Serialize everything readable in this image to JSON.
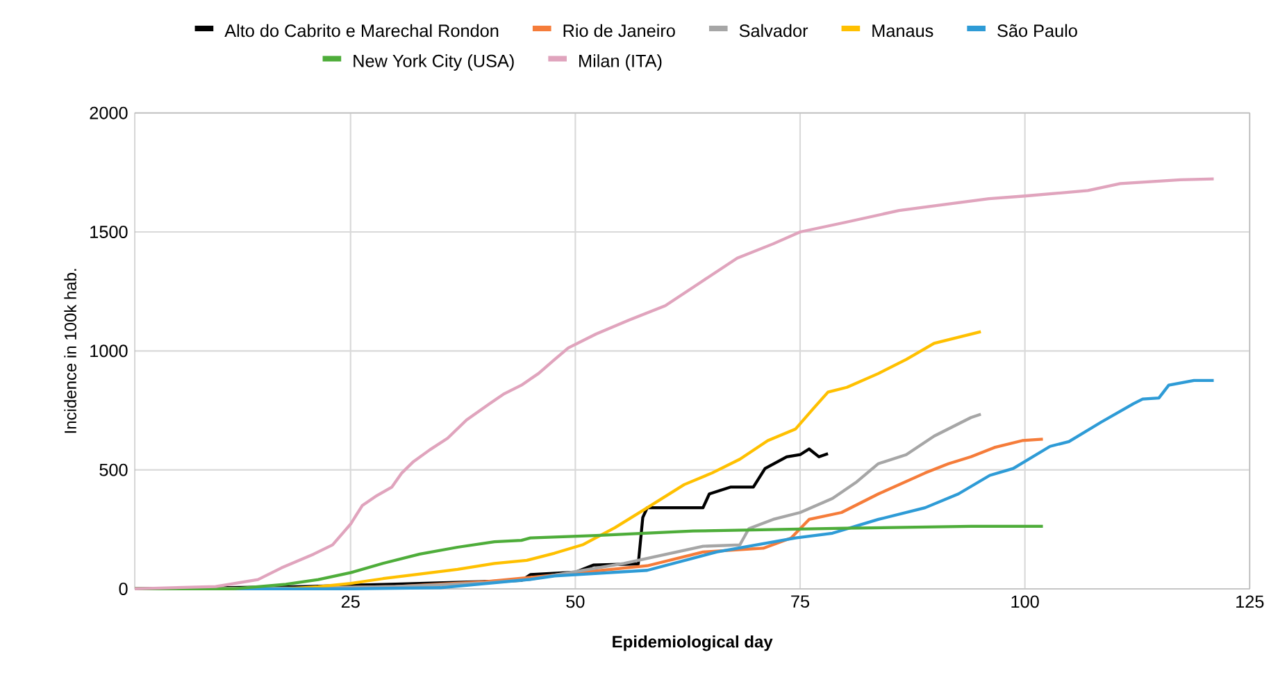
{
  "chart_data": {
    "type": "line",
    "xlabel": "Epidemiological day",
    "ylabel": "Incidence in 100k hab.",
    "xlim": [
      1,
      125
    ],
    "ylim": [
      0,
      2000
    ],
    "xticks": [
      25,
      50,
      75,
      100,
      125
    ],
    "yticks": [
      0,
      500,
      1000,
      1500,
      2000
    ],
    "grid": true,
    "legend": "top",
    "marker": "none",
    "line_style": "solid",
    "series": [
      {
        "name": "Alto do Cabrito e Marechal Rondon",
        "color": "#000000",
        "x": [
          1,
          10,
          20,
          30,
          40,
          44,
          45,
          50,
          52,
          57,
          57.5,
          58,
          64.2,
          64.9,
          67.3,
          69.8,
          71.1,
          73.5,
          75,
          76,
          77.1,
          78.1
        ],
        "values": [
          0,
          null,
          10,
          20,
          null,
          35,
          60,
          70,
          100,
          105,
          300,
          341,
          341,
          399,
          428,
          428,
          506,
          555,
          564,
          588,
          555,
          568
        ]
      },
      {
        "name": "Rio de Janeiro",
        "color": "#f57c3a",
        "x": [
          1,
          20,
          30,
          40,
          47.7,
          58,
          64.2,
          70.9,
          74,
          76,
          79.6,
          83.7,
          88.9,
          91.5,
          94,
          96.6,
          99.7,
          102
        ],
        "values": [
          0,
          3,
          10,
          30,
          58,
          97,
          155,
          171,
          214,
          292,
          321,
          399,
          487,
          526,
          555,
          594,
          623,
          629
        ]
      },
      {
        "name": "Salvador",
        "color": "#a6a6a6",
        "x": [
          1,
          20,
          30,
          40,
          45,
          47.7,
          55.4,
          64.2,
          68.3,
          69.3,
          72,
          75,
          78.6,
          81.2,
          83.7,
          86.8,
          89.9,
          94,
          95.1
        ],
        "values": [
          0,
          3,
          10,
          25,
          40,
          58,
          107,
          179,
          185,
          253,
          292,
          321,
          380,
          447,
          526,
          564,
          642,
          720,
          734
        ]
      },
      {
        "name": "Manaus",
        "color": "#ffc000",
        "x": [
          1,
          18,
          21.4,
          25,
          28.6,
          32.7,
          36.9,
          41,
          44.6,
          47.7,
          50.8,
          54.4,
          58,
          62.1,
          65.2,
          68.3,
          71.4,
          74.5,
          76.5,
          78.1,
          80.2,
          83.7,
          86.8,
          89.9,
          93,
          95.1
        ],
        "values": [
          0,
          0,
          9,
          23,
          43,
          62,
          82,
          107,
          120,
          150,
          185,
          257,
          341,
          438,
          487,
          545,
          623,
          672,
          759,
          827,
          847,
          905,
          964,
          1032,
          1061,
          1081
        ]
      },
      {
        "name": "São Paulo",
        "color": "#2e9bd6",
        "x": [
          1,
          25,
          35,
          45,
          47.7,
          58,
          65.7,
          74.5,
          78.6,
          83.7,
          88.9,
          92.6,
          96.1,
          98.7,
          102.8,
          104.9,
          108.5,
          112.1,
          113.1,
          114.9,
          116,
          118.8,
          121
        ],
        "values": [
          0,
          0,
          5,
          40,
          54,
          78,
          155,
          214,
          234,
          292,
          341,
          399,
          477,
          506,
          599,
          619,
          701,
          779,
          798,
          802,
          856,
          876,
          876
        ]
      },
      {
        "name": "New York City (USA)",
        "color": "#4ead3a",
        "x": [
          1,
          12,
          17.8,
          21.4,
          25,
          28.6,
          32.7,
          36.9,
          41,
          44,
          45,
          52.3,
          63.1,
          80,
          94,
          102
        ],
        "values": [
          0,
          0,
          19,
          39,
          68,
          107,
          146,
          175,
          198,
          204,
          214,
          224,
          243,
          255,
          263,
          263
        ]
      },
      {
        "name": "Milan (ITA)",
        "color": "#e0a4bd",
        "x": [
          1,
          10,
          14.7,
          17.3,
          20.9,
          23,
          25,
          26.3,
          27.8,
          29.6,
          30.7,
          32,
          33.8,
          35.8,
          37.9,
          40.5,
          42,
          44,
          45.9,
          47.7,
          49.2,
          52.3,
          56,
          60,
          64,
          68,
          72,
          75,
          80,
          86,
          92,
          96,
          100,
          107,
          110.6,
          117.3,
          121
        ],
        "values": [
          0,
          10,
          39,
          88,
          146,
          185,
          272,
          350,
          389,
          428,
          487,
          535,
          584,
          633,
          710,
          779,
          818,
          856,
          905,
          964,
          1012,
          1071,
          1130,
          1190,
          1290,
          1390,
          1450,
          1500,
          1540,
          1590,
          1620,
          1640,
          1651,
          1674,
          1703,
          1719,
          1723
        ]
      }
    ]
  }
}
